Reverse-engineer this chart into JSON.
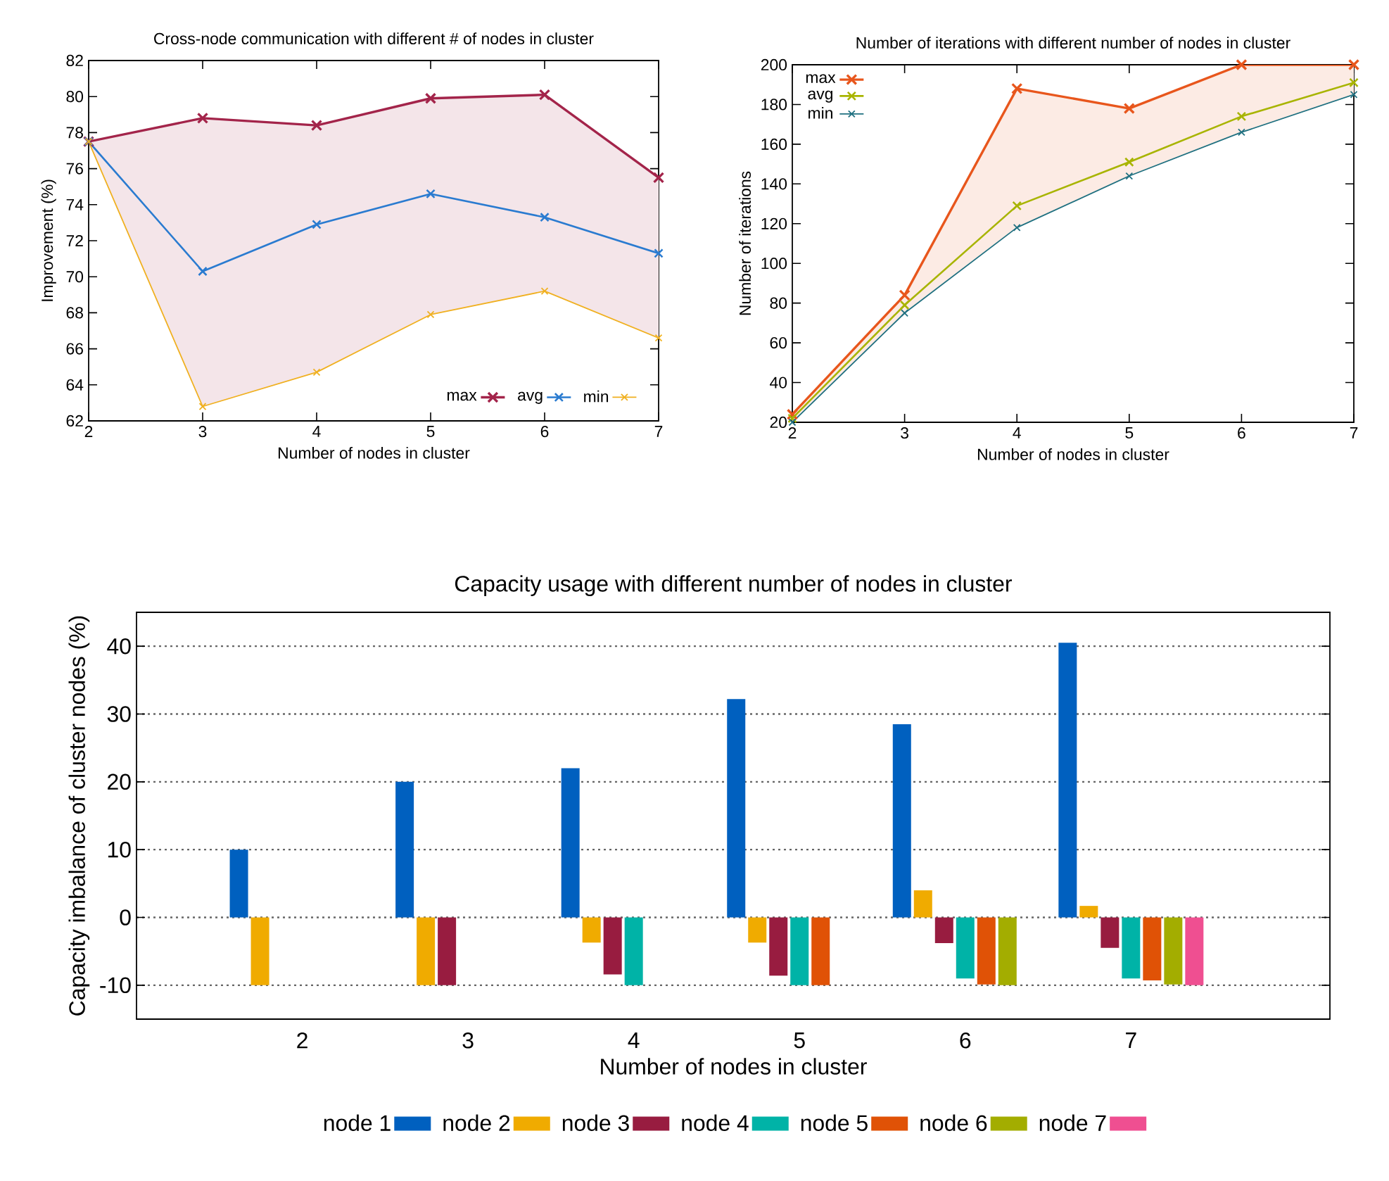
{
  "chart_data": [
    {
      "type": "line",
      "title": "Cross-node communication with different # of nodes in cluster",
      "xlabel": "Number of nodes in cluster",
      "ylabel": "Improvement (%)",
      "x": [
        2,
        3,
        4,
        5,
        6,
        7
      ],
      "xlim": [
        2,
        7
      ],
      "xticks": [
        2,
        3,
        4,
        5,
        6,
        7
      ],
      "ylim": [
        62,
        82
      ],
      "yticks": [
        62,
        64,
        66,
        68,
        70,
        72,
        74,
        76,
        78,
        80,
        82
      ],
      "marker": "cross",
      "legend": "bottom right",
      "series": [
        {
          "name": "max",
          "color": "#a3244a",
          "values": [
            77.5,
            78.8,
            78.4,
            79.9,
            80.1,
            75.5
          ],
          "lower": [
            77.5,
            62.8,
            64.7,
            67.9,
            69.2,
            66.6
          ],
          "upper": [
            77.5,
            78.8,
            78.4,
            79.9,
            80.1,
            75.5
          ]
        },
        {
          "name": "avg",
          "color": "#2a7bd0",
          "values": [
            77.5,
            70.3,
            72.9,
            74.6,
            73.3,
            71.3
          ]
        },
        {
          "name": "min",
          "color": "#f0b020",
          "values": [
            77.5,
            62.8,
            64.7,
            67.9,
            69.2,
            66.6
          ]
        }
      ]
    },
    {
      "type": "line",
      "title": "Number of iterations with different number of nodes in cluster",
      "xlabel": "Number of nodes in cluster",
      "ylabel": "Number of iterations",
      "x": [
        2,
        3,
        4,
        5,
        6,
        7
      ],
      "xlim": [
        2,
        7
      ],
      "xticks": [
        2,
        3,
        4,
        5,
        6,
        7
      ],
      "ylim": [
        20,
        200
      ],
      "yticks": [
        20,
        40,
        60,
        80,
        100,
        120,
        140,
        160,
        180,
        200
      ],
      "marker": "cross",
      "legend": "top left",
      "series": [
        {
          "name": "max",
          "color": "#e8561c",
          "values": [
            24,
            84,
            188,
            178,
            200,
            200
          ],
          "lower": [
            20,
            75,
            118,
            144,
            166,
            185
          ],
          "upper": [
            24,
            84,
            188,
            178,
            200,
            200
          ]
        },
        {
          "name": "avg",
          "color": "#a8b400",
          "values": [
            22,
            79,
            129,
            151,
            174,
            191
          ]
        },
        {
          "name": "min",
          "color": "#1f7080",
          "values": [
            20,
            75,
            118,
            144,
            166,
            185
          ]
        }
      ]
    },
    {
      "type": "bar",
      "title": "Capacity usage with different number of nodes in cluster",
      "xlabel": "Number of nodes in cluster",
      "ylabel": "Capacity imbalance of cluster nodes (%)",
      "categories": [
        "2",
        "3",
        "4",
        "5",
        "6",
        "7"
      ],
      "ylim": [
        -15,
        45
      ],
      "yticks": [
        -10,
        0,
        10,
        20,
        30,
        40
      ],
      "grid": "y",
      "legend": "bottom",
      "series": [
        {
          "name": "node 1",
          "color": "#0060bf",
          "values": [
            10,
            20,
            22,
            32.2,
            28.5,
            40.5
          ]
        },
        {
          "name": "node 2",
          "color": "#f0ab00",
          "values": [
            -10,
            -10,
            -3.7,
            -3.7,
            4,
            1.7
          ]
        },
        {
          "name": "node 3",
          "color": "#981c40",
          "values": [
            null,
            -10,
            -8.4,
            -8.6,
            -3.8,
            -4.5
          ]
        },
        {
          "name": "node 4",
          "color": "#00b3a7",
          "values": [
            null,
            null,
            -10,
            -10,
            -9,
            -9
          ]
        },
        {
          "name": "node 5",
          "color": "#e05206",
          "values": [
            null,
            null,
            null,
            -10,
            -9.9,
            -9.3
          ]
        },
        {
          "name": "node 6",
          "color": "#a3ad00",
          "values": [
            null,
            null,
            null,
            null,
            -10,
            -9.9
          ]
        },
        {
          "name": "node 7",
          "color": "#ef4f91",
          "values": [
            null,
            null,
            null,
            null,
            null,
            -10
          ]
        }
      ]
    }
  ]
}
